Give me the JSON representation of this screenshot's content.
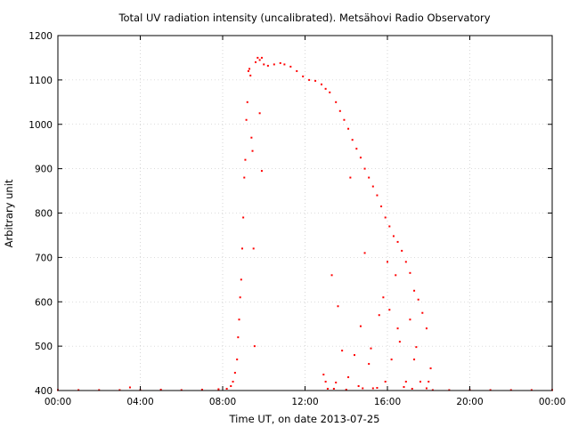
{
  "chart_data": {
    "type": "scatter",
    "title": "Total UV radiation intensity (uncalibrated). Metsähovi Radio Observatory",
    "xlabel": "Time UT, on date 2013-07-25",
    "ylabel": "Arbitrary unit",
    "xlim": [
      0,
      24
    ],
    "ylim": [
      400,
      1200
    ],
    "xticks": [
      0,
      4,
      8,
      12,
      16,
      20,
      24
    ],
    "xtick_labels": [
      "00:00",
      "04:00",
      "08:00",
      "12:00",
      "16:00",
      "20:00",
      "00:00"
    ],
    "yticks": [
      400,
      500,
      600,
      700,
      800,
      900,
      1000,
      1100,
      1200
    ],
    "ytick_labels": [
      "400",
      "500",
      "600",
      "700",
      "800",
      "900",
      "1000",
      "1100",
      "1200"
    ],
    "grid": true,
    "point_color": "#ff0000",
    "series": [
      {
        "points": [
          [
            0.0,
            401
          ],
          [
            1.0,
            401
          ],
          [
            2.0,
            401
          ],
          [
            3.0,
            401
          ],
          [
            3.5,
            407
          ],
          [
            4.0,
            401
          ],
          [
            5.0,
            402
          ],
          [
            6.0,
            401
          ],
          [
            7.0,
            402
          ],
          [
            7.8,
            403
          ],
          [
            8.2,
            404
          ],
          [
            8.4,
            410
          ],
          [
            8.5,
            420
          ],
          [
            8.6,
            440
          ],
          [
            8.7,
            470
          ],
          [
            8.75,
            520
          ],
          [
            8.8,
            560
          ],
          [
            8.85,
            610
          ],
          [
            8.9,
            650
          ],
          [
            8.95,
            720
          ],
          [
            9.0,
            790
          ],
          [
            9.05,
            880
          ],
          [
            9.1,
            920
          ],
          [
            9.15,
            1010
          ],
          [
            9.2,
            1050
          ],
          [
            9.25,
            1120
          ],
          [
            9.3,
            1125
          ],
          [
            9.35,
            1110
          ],
          [
            9.4,
            970
          ],
          [
            9.45,
            940
          ],
          [
            9.5,
            720
          ],
          [
            9.55,
            500
          ],
          [
            9.6,
            1140
          ],
          [
            9.7,
            1150
          ],
          [
            9.8,
            1145
          ],
          [
            9.9,
            1150
          ],
          [
            10.0,
            1135
          ],
          [
            10.2,
            1132
          ],
          [
            10.5,
            1135
          ],
          [
            10.8,
            1138
          ],
          [
            11.0,
            1135
          ],
          [
            11.3,
            1130
          ],
          [
            11.6,
            1120
          ],
          [
            11.9,
            1108
          ],
          [
            12.2,
            1100
          ],
          [
            12.5,
            1098
          ],
          [
            12.8,
            1090
          ],
          [
            13.0,
            1080
          ],
          [
            13.2,
            1072
          ],
          [
            13.5,
            1050
          ],
          [
            13.7,
            1030
          ],
          [
            13.9,
            1010
          ],
          [
            14.1,
            990
          ],
          [
            14.3,
            965
          ],
          [
            14.5,
            945
          ],
          [
            14.7,
            925
          ],
          [
            14.9,
            900
          ],
          [
            15.1,
            880
          ],
          [
            15.3,
            860
          ],
          [
            15.5,
            840
          ],
          [
            15.7,
            815
          ],
          [
            15.9,
            790
          ],
          [
            16.1,
            770
          ],
          [
            16.3,
            748
          ],
          [
            16.5,
            735
          ],
          [
            16.7,
            715
          ],
          [
            16.9,
            690
          ],
          [
            17.1,
            665
          ],
          [
            17.3,
            625
          ],
          [
            17.5,
            605
          ],
          [
            17.7,
            575
          ],
          [
            17.9,
            540
          ],
          [
            18.0,
            420
          ],
          [
            18.2,
            401
          ],
          [
            19.0,
            401
          ],
          [
            20.0,
            401
          ],
          [
            21.0,
            401
          ],
          [
            22.0,
            401
          ],
          [
            23.0,
            401
          ],
          [
            24.0,
            401
          ],
          [
            9.8,
            1025
          ],
          [
            9.9,
            895
          ],
          [
            13.0,
            420
          ],
          [
            13.3,
            660
          ],
          [
            13.6,
            590
          ],
          [
            13.8,
            490
          ],
          [
            14.2,
            880
          ],
          [
            14.4,
            480
          ],
          [
            14.6,
            410
          ],
          [
            14.9,
            710
          ],
          [
            15.1,
            460
          ],
          [
            15.3,
            405
          ],
          [
            15.6,
            570
          ],
          [
            15.9,
            420
          ],
          [
            16.0,
            690
          ],
          [
            16.2,
            470
          ],
          [
            16.4,
            660
          ],
          [
            16.6,
            510
          ],
          [
            16.9,
            420
          ],
          [
            17.1,
            560
          ],
          [
            17.3,
            470
          ],
          [
            17.6,
            420
          ],
          [
            17.9,
            405
          ],
          [
            18.1,
            450
          ],
          [
            13.4,
            404
          ],
          [
            14.0,
            402
          ],
          [
            14.8,
            405
          ],
          [
            15.5,
            406
          ],
          [
            16.8,
            408
          ],
          [
            17.2,
            404
          ],
          [
            12.9,
            436
          ],
          [
            13.1,
            404
          ],
          [
            13.5,
            418
          ],
          [
            14.1,
            430
          ],
          [
            14.7,
            545
          ],
          [
            15.2,
            495
          ],
          [
            15.8,
            610
          ],
          [
            16.1,
            582
          ],
          [
            16.5,
            540
          ],
          [
            17.4,
            498
          ]
        ]
      }
    ]
  }
}
